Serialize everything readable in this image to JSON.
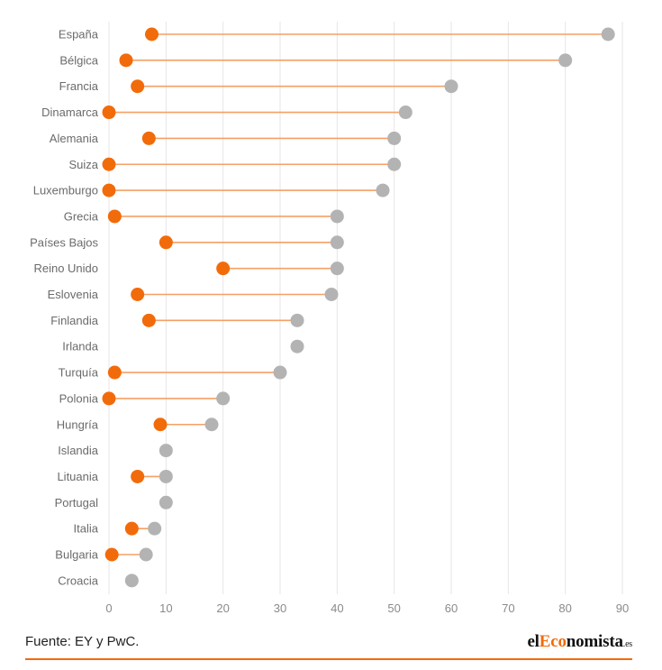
{
  "chart_data": {
    "type": "dumbbell",
    "title": "",
    "xlabel": "",
    "ylabel": "",
    "xlim": [
      0,
      90
    ],
    "x_ticks": [
      "0",
      "10",
      "20",
      "30",
      "40",
      "50",
      "60",
      "70",
      "80",
      "90"
    ],
    "grid": true,
    "colors": {
      "low": "#f26b0a",
      "high": "#b3b3b3",
      "connector": "#f5a066"
    },
    "categories": [
      "España",
      "Bélgica",
      "Francia",
      "Dinamarca",
      "Alemania",
      "Suiza",
      "Luxemburgo",
      "Grecia",
      "Países Bajos",
      "Reino Unido",
      "Eslovenia",
      "Finlandia",
      "Irlanda",
      "Turquía",
      "Polonia",
      "Hungría",
      "Islandia",
      "Lituania",
      "Portugal",
      "Italia",
      "Bulgaria",
      "Croacia"
    ],
    "series": [
      {
        "values": [
          7.5,
          3,
          5,
          0,
          7,
          0,
          0,
          1,
          10,
          20,
          5,
          7,
          33,
          1,
          0,
          9,
          10,
          5,
          10,
          4,
          0.5,
          4
        ]
      },
      {
        "values": [
          87.5,
          80,
          60,
          52,
          50,
          50,
          48,
          40,
          40,
          40,
          39,
          33,
          33,
          30,
          20,
          18,
          10,
          10,
          10,
          8,
          6.5,
          4
        ]
      }
    ]
  },
  "footer": {
    "source": "Fuente: EY y PwC.",
    "logo_pre": "el",
    "logo_accent": "Eco",
    "logo_post": "nomista",
    "logo_suffix": ".es"
  }
}
